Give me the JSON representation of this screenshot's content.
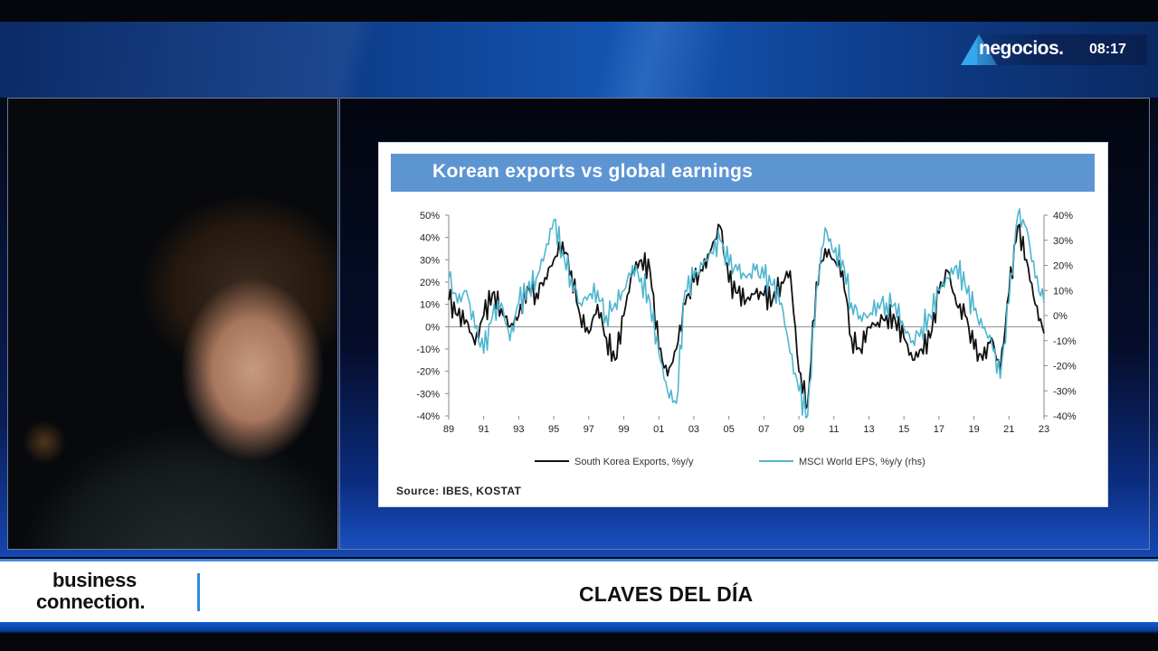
{
  "channel": {
    "logo_text": "negocios.",
    "clock": "08:17"
  },
  "chart": {
    "title": "Korean exports vs global earnings",
    "source": "Source: IBES, KOSTAT"
  },
  "chart_data": {
    "type": "line",
    "title": "Korean exports vs global earnings",
    "x_ticks": [
      "89",
      "91",
      "93",
      "95",
      "97",
      "99",
      "01",
      "03",
      "05",
      "07",
      "09",
      "11",
      "13",
      "15",
      "17",
      "19",
      "21",
      "23"
    ],
    "y_left_ticks": [
      "50%",
      "40%",
      "30%",
      "20%",
      "10%",
      "0%",
      "-10%",
      "-20%",
      "-30%",
      "-40%"
    ],
    "y_right_ticks": [
      "40%",
      "30%",
      "20%",
      "10%",
      "0%",
      "-10%",
      "-20%",
      "-30%",
      "-40%"
    ],
    "ylim_left": [
      -40,
      50
    ],
    "ylim_right": [
      -40,
      40
    ],
    "xlim": [
      1989,
      2023
    ],
    "legend_position": "bottom",
    "series": [
      {
        "name": "South Korea Exports, %y/y",
        "color": "#111111",
        "axis": "left",
        "points": [
          [
            1989.0,
            12
          ],
          [
            1989.5,
            5
          ],
          [
            1990.0,
            3
          ],
          [
            1990.5,
            -8
          ],
          [
            1991.0,
            5
          ],
          [
            1991.5,
            15
          ],
          [
            1992.0,
            8
          ],
          [
            1992.5,
            0
          ],
          [
            1993.0,
            5
          ],
          [
            1993.5,
            18
          ],
          [
            1994.0,
            15
          ],
          [
            1994.5,
            22
          ],
          [
            1995.0,
            30
          ],
          [
            1995.5,
            38
          ],
          [
            1996.0,
            25
          ],
          [
            1996.5,
            5
          ],
          [
            1997.0,
            -3
          ],
          [
            1997.5,
            10
          ],
          [
            1998.0,
            -5
          ],
          [
            1998.5,
            -15
          ],
          [
            1999.0,
            5
          ],
          [
            1999.5,
            25
          ],
          [
            2000.0,
            30
          ],
          [
            2000.5,
            25
          ],
          [
            2001.0,
            -10
          ],
          [
            2001.5,
            -22
          ],
          [
            2002.0,
            -10
          ],
          [
            2002.5,
            10
          ],
          [
            2003.0,
            20
          ],
          [
            2003.5,
            25
          ],
          [
            2004.0,
            35
          ],
          [
            2004.5,
            45
          ],
          [
            2005.0,
            20
          ],
          [
            2005.5,
            15
          ],
          [
            2006.0,
            12
          ],
          [
            2006.5,
            15
          ],
          [
            2007.0,
            14
          ],
          [
            2007.5,
            12
          ],
          [
            2008.0,
            20
          ],
          [
            2008.5,
            25
          ],
          [
            2009.0,
            -20
          ],
          [
            2009.5,
            -35
          ],
          [
            2010.0,
            20
          ],
          [
            2010.5,
            35
          ],
          [
            2011.0,
            30
          ],
          [
            2011.5,
            25
          ],
          [
            2012.0,
            -5
          ],
          [
            2012.5,
            -10
          ],
          [
            2013.0,
            0
          ],
          [
            2013.5,
            2
          ],
          [
            2014.0,
            5
          ],
          [
            2014.5,
            3
          ],
          [
            2015.0,
            -5
          ],
          [
            2015.5,
            -15
          ],
          [
            2016.0,
            -10
          ],
          [
            2016.5,
            -5
          ],
          [
            2017.0,
            15
          ],
          [
            2017.5,
            25
          ],
          [
            2018.0,
            10
          ],
          [
            2018.5,
            5
          ],
          [
            2019.0,
            -10
          ],
          [
            2019.5,
            -15
          ],
          [
            2020.0,
            -5
          ],
          [
            2020.5,
            -20
          ],
          [
            2021.0,
            15
          ],
          [
            2021.5,
            45
          ],
          [
            2022.0,
            30
          ],
          [
            2022.5,
            10
          ],
          [
            2023.0,
            -3
          ]
        ]
      },
      {
        "name": "MSCI World EPS, %y/y (rhs)",
        "color": "#4fb6cf",
        "axis": "right",
        "points": [
          [
            1989.0,
            15
          ],
          [
            1989.5,
            5
          ],
          [
            1990.0,
            10
          ],
          [
            1990.5,
            -5
          ],
          [
            1991.0,
            -15
          ],
          [
            1991.5,
            0
          ],
          [
            1992.0,
            5
          ],
          [
            1992.5,
            -10
          ],
          [
            1993.0,
            5
          ],
          [
            1993.5,
            10
          ],
          [
            1994.0,
            15
          ],
          [
            1994.5,
            25
          ],
          [
            1995.0,
            38
          ],
          [
            1995.5,
            25
          ],
          [
            1996.0,
            15
          ],
          [
            1996.5,
            5
          ],
          [
            1997.0,
            8
          ],
          [
            1997.5,
            10
          ],
          [
            1998.0,
            0
          ],
          [
            1998.5,
            5
          ],
          [
            1999.0,
            10
          ],
          [
            1999.5,
            20
          ],
          [
            2000.0,
            15
          ],
          [
            2000.5,
            5
          ],
          [
            2001.0,
            -15
          ],
          [
            2001.5,
            -30
          ],
          [
            2002.0,
            -35
          ],
          [
            2002.5,
            10
          ],
          [
            2003.0,
            15
          ],
          [
            2003.5,
            20
          ],
          [
            2004.0,
            25
          ],
          [
            2004.5,
            30
          ],
          [
            2005.0,
            20
          ],
          [
            2005.5,
            18
          ],
          [
            2006.0,
            15
          ],
          [
            2006.5,
            18
          ],
          [
            2007.0,
            15
          ],
          [
            2007.5,
            12
          ],
          [
            2008.0,
            5
          ],
          [
            2008.5,
            -15
          ],
          [
            2009.0,
            -30
          ],
          [
            2009.5,
            -40
          ],
          [
            2010.0,
            10
          ],
          [
            2010.5,
            35
          ],
          [
            2011.0,
            25
          ],
          [
            2011.5,
            22
          ],
          [
            2012.0,
            5
          ],
          [
            2012.5,
            0
          ],
          [
            2013.0,
            0
          ],
          [
            2013.5,
            5
          ],
          [
            2014.0,
            5
          ],
          [
            2014.5,
            5
          ],
          [
            2015.0,
            -5
          ],
          [
            2015.5,
            -10
          ],
          [
            2016.0,
            -5
          ],
          [
            2016.5,
            0
          ],
          [
            2017.0,
            10
          ],
          [
            2017.5,
            15
          ],
          [
            2018.0,
            20
          ],
          [
            2018.5,
            12
          ],
          [
            2019.0,
            2
          ],
          [
            2019.5,
            -5
          ],
          [
            2020.0,
            -10
          ],
          [
            2020.5,
            -25
          ],
          [
            2021.0,
            5
          ],
          [
            2021.5,
            40
          ],
          [
            2022.0,
            35
          ],
          [
            2022.5,
            15
          ],
          [
            2023.0,
            5
          ]
        ]
      }
    ]
  },
  "lower_third": {
    "logo_line1": "business",
    "logo_line2": "connection.",
    "headline": "CLAVES DEL DÍA"
  }
}
